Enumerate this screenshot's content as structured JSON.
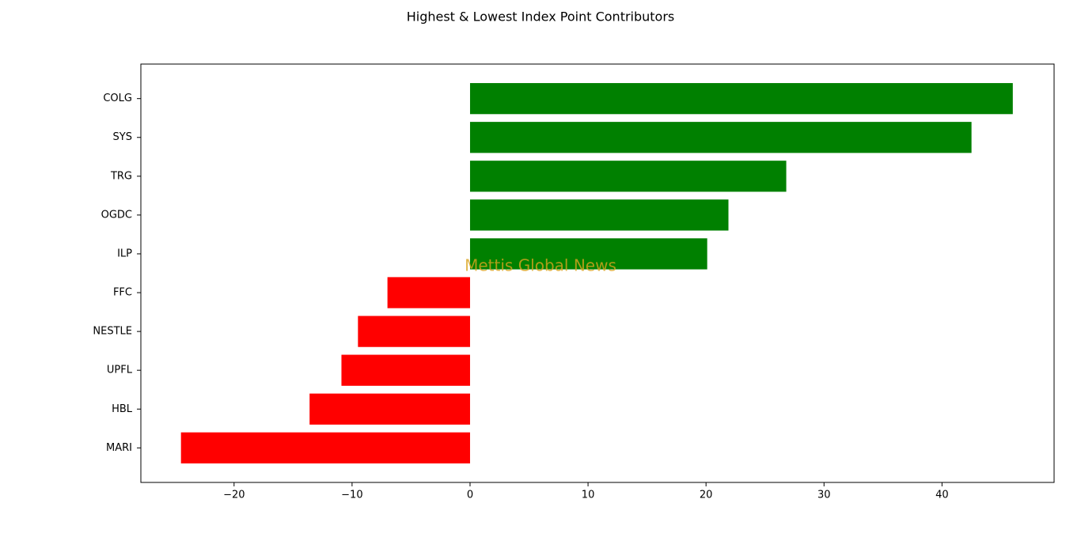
{
  "chart_data": {
    "type": "barh",
    "title": "Highest & Lowest Index Point Contributors",
    "watermark": "Mettis Global News",
    "categories": [
      "COLG",
      "SYS",
      "TRG",
      "OGDC",
      "ILP",
      "FFC",
      "NESTLE",
      "UPFL",
      "HBL",
      "MARI"
    ],
    "values": [
      46.0,
      42.5,
      26.8,
      21.9,
      20.1,
      -7.0,
      -9.5,
      -10.9,
      -13.6,
      -24.5
    ],
    "colors": [
      "#008000",
      "#008000",
      "#008000",
      "#008000",
      "#008000",
      "#ff0000",
      "#ff0000",
      "#ff0000",
      "#ff0000",
      "#ff0000"
    ],
    "xlim": [
      -27.9,
      49.5
    ],
    "xticks": [
      {
        "value": -20,
        "label": "−20"
      },
      {
        "value": -10,
        "label": "−10"
      },
      0,
      10,
      20,
      30,
      40
    ],
    "grid": false
  }
}
